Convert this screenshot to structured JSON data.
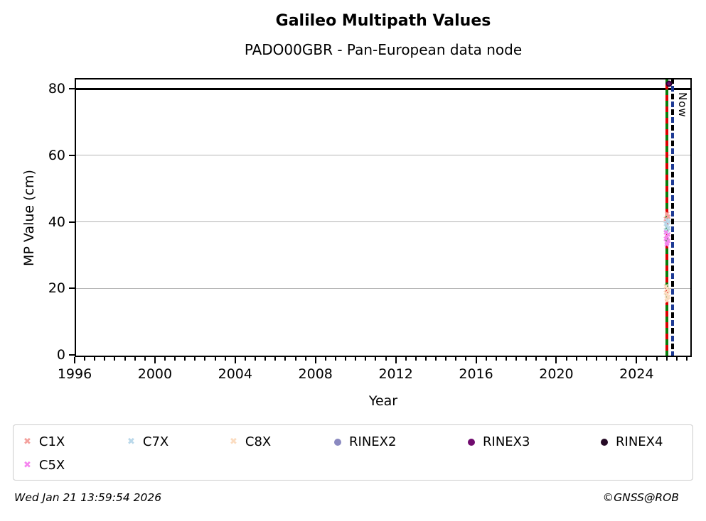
{
  "header": {
    "title": "Galileo Multipath Values",
    "subtitle": "PADO00GBR - Pan-European data node"
  },
  "footer": {
    "timestamp": "Wed Jan 21 13:59:54 2026",
    "credit": "©GNSS@ROB"
  },
  "chart_data": {
    "type": "scatter",
    "title": "Galileo Multipath Values",
    "subtitle": "PADO00GBR - Pan-European data node",
    "xlabel": "Year",
    "ylabel": "MP Value (cm)",
    "xlim": [
      1996,
      2026.75
    ],
    "ylim": [
      -0.6,
      83.2
    ],
    "x_major_ticks": [
      1996,
      2000,
      2004,
      2008,
      2012,
      2016,
      2020,
      2024
    ],
    "x_minor_step": 0.5,
    "y_ticks": [
      0,
      20,
      40,
      60,
      80
    ],
    "gridline_values": [
      20,
      40,
      60
    ],
    "grid_color": "#b4b4b4",
    "cutoff_line": {
      "value": 80,
      "color": "#000000"
    },
    "vlines": [
      {
        "name": "last-data-line",
        "year": 2025.5,
        "dash_colors": [
          "#0a7d0a",
          "#dd0000"
        ],
        "label": ""
      },
      {
        "name": "now-line",
        "year": 2025.8,
        "dash_colors": [
          "#000000",
          "#1d3a94"
        ],
        "label": "Now"
      }
    ],
    "series_colors": {
      "C1X": "#f4a19d",
      "C7X": "#b9d8ea",
      "C8X": "#fbdcc0",
      "RINEX2": "#8a89c0",
      "RINEX3": "#700b6e",
      "RINEX4": "#260b26",
      "C5X": "#f585ef"
    },
    "points": [
      {
        "signal": "RINEX3",
        "year": 2025.6,
        "value": 81.5,
        "marker": "circle"
      },
      {
        "signal": "C1X",
        "year": 2025.52,
        "value": 42.0,
        "marker": "x"
      },
      {
        "signal": "C1X",
        "year": 2025.58,
        "value": 41.2,
        "marker": "x"
      },
      {
        "signal": "C1X",
        "year": 2025.46,
        "value": 40.6,
        "marker": "x"
      },
      {
        "signal": "C7X",
        "year": 2025.52,
        "value": 40.2,
        "marker": "x"
      },
      {
        "signal": "C7X",
        "year": 2025.58,
        "value": 39.6,
        "marker": "x"
      },
      {
        "signal": "C7X",
        "year": 2025.46,
        "value": 39.0,
        "marker": "x"
      },
      {
        "signal": "C7X",
        "year": 2025.52,
        "value": 38.4,
        "marker": "x"
      },
      {
        "signal": "C7X",
        "year": 2025.58,
        "value": 37.8,
        "marker": "x"
      },
      {
        "signal": "C7X",
        "year": 2025.46,
        "value": 37.2,
        "marker": "x"
      },
      {
        "signal": "C7X",
        "year": 2025.52,
        "value": 36.6,
        "marker": "x"
      },
      {
        "signal": "C5X",
        "year": 2025.46,
        "value": 36.4,
        "marker": "x"
      },
      {
        "signal": "C5X",
        "year": 2025.58,
        "value": 35.8,
        "marker": "x"
      },
      {
        "signal": "C5X",
        "year": 2025.52,
        "value": 35.2,
        "marker": "x"
      },
      {
        "signal": "C5X",
        "year": 2025.46,
        "value": 34.6,
        "marker": "x"
      },
      {
        "signal": "C5X",
        "year": 2025.58,
        "value": 34.0,
        "marker": "x"
      },
      {
        "signal": "C5X",
        "year": 2025.52,
        "value": 33.4,
        "marker": "x"
      },
      {
        "signal": "C5X",
        "year": 2025.5,
        "value": 32.8,
        "marker": "x"
      },
      {
        "signal": "C8X",
        "year": 2025.46,
        "value": 20.2,
        "marker": "x"
      },
      {
        "signal": "C8X",
        "year": 2025.52,
        "value": 19.6,
        "marker": "x"
      },
      {
        "signal": "C8X",
        "year": 2025.58,
        "value": 19.0,
        "marker": "x"
      },
      {
        "signal": "C8X",
        "year": 2025.46,
        "value": 18.4,
        "marker": "x"
      },
      {
        "signal": "C8X",
        "year": 2025.52,
        "value": 17.8,
        "marker": "x"
      },
      {
        "signal": "C8X",
        "year": 2025.58,
        "value": 17.2,
        "marker": "x"
      },
      {
        "signal": "C8X",
        "year": 2025.5,
        "value": 16.6,
        "marker": "x"
      },
      {
        "signal": "C8X",
        "year": 2025.52,
        "value": 16.0,
        "marker": "x"
      }
    ]
  },
  "legend": {
    "items": [
      {
        "label": "C1X",
        "marker": "x",
        "color": "#f4a19d"
      },
      {
        "label": "C7X",
        "marker": "x",
        "color": "#b9d8ea"
      },
      {
        "label": "C8X",
        "marker": "x",
        "color": "#fbdcc0"
      },
      {
        "label": "RINEX2",
        "marker": "circle",
        "color": "#8a89c0"
      },
      {
        "label": "RINEX3",
        "marker": "circle",
        "color": "#700b6e"
      },
      {
        "label": "RINEX4",
        "marker": "circle",
        "color": "#260b26"
      },
      {
        "label": "C5X",
        "marker": "x",
        "color": "#f585ef"
      }
    ]
  }
}
